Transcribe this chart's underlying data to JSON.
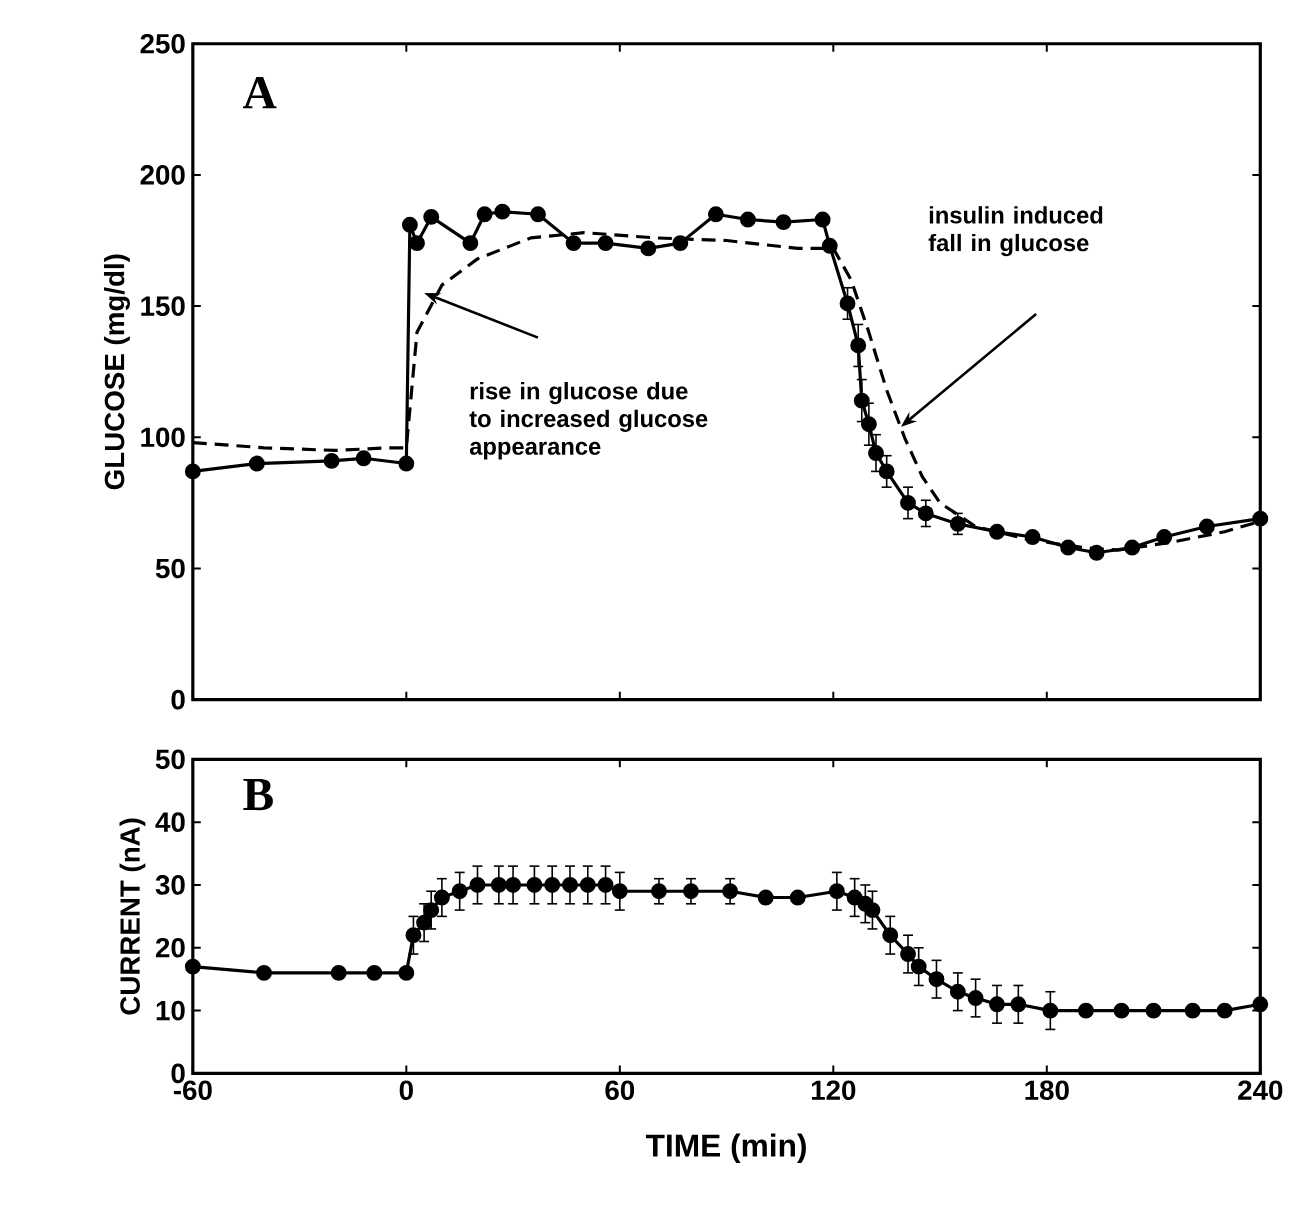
{
  "chart_data": [
    {
      "type": "line",
      "ylabel": "GLUCOSE (mg/dl)",
      "xlim": [
        -60,
        240
      ],
      "ylim": [
        0,
        250
      ],
      "xticks": [
        -60,
        0,
        60,
        120,
        180,
        240
      ],
      "yticks": [
        0,
        50,
        100,
        150,
        200,
        250
      ],
      "tick_labels": "y",
      "annotations": [
        "A",
        "rise in glucose due to increased glucose appearance",
        "insulin induced fall in glucose"
      ],
      "series": [
        {
          "color": "#000000",
          "marker": "circle",
          "line_style": "solid",
          "x": [
            -60,
            -42,
            -21,
            -12,
            0,
            1,
            3,
            7,
            18,
            22,
            27,
            37,
            47,
            56,
            68,
            77,
            87,
            96,
            106,
            117,
            119,
            124,
            127,
            128,
            130,
            132,
            135,
            141,
            146,
            155,
            166,
            176,
            186,
            194,
            204,
            213,
            225,
            240
          ],
          "values": [
            87,
            90,
            91,
            92,
            90,
            181,
            174,
            184,
            174,
            185,
            186,
            185,
            174,
            174,
            172,
            174,
            185,
            183,
            182,
            183,
            173,
            151,
            135,
            114,
            105,
            94,
            87,
            75,
            71,
            67,
            64,
            62,
            58,
            56,
            58,
            62,
            66,
            69
          ],
          "errors": [
            null,
            null,
            null,
            null,
            null,
            null,
            null,
            null,
            null,
            null,
            null,
            null,
            null,
            null,
            null,
            null,
            null,
            null,
            null,
            null,
            null,
            6,
            8,
            8,
            8,
            7,
            6,
            6,
            5,
            4,
            null,
            null,
            null,
            null,
            null,
            null,
            null,
            null
          ]
        },
        {
          "color": "#000000",
          "marker": "none",
          "line_style": "dashed",
          "x": [
            -60,
            -40,
            -20,
            -5,
            0,
            3,
            10,
            20,
            35,
            50,
            70,
            90,
            110,
            120,
            125,
            130,
            135,
            140,
            145,
            150,
            160,
            175,
            190,
            200,
            215,
            230,
            240
          ],
          "values": [
            98,
            96,
            95,
            96,
            96,
            140,
            158,
            168,
            176,
            178,
            176,
            175,
            172,
            172,
            160,
            140,
            118,
            100,
            85,
            75,
            66,
            61,
            58,
            57,
            60,
            64,
            68
          ]
        }
      ]
    },
    {
      "type": "line",
      "xlabel": "TIME (min)",
      "ylabel": "CURRENT (nA)",
      "xlim": [
        -60,
        240
      ],
      "ylim": [
        0,
        50
      ],
      "xticks": [
        -60,
        0,
        60,
        120,
        180,
        240
      ],
      "yticks": [
        0,
        10,
        20,
        30,
        40,
        50
      ],
      "annotations": [
        "B"
      ],
      "series": [
        {
          "color": "#000000",
          "marker": "circle",
          "line_style": "solid",
          "x": [
            -60,
            -40,
            -19,
            -9,
            0,
            2,
            5,
            7,
            10,
            15,
            20,
            26,
            30,
            36,
            41,
            46,
            51,
            56,
            60,
            71,
            80,
            91,
            101,
            110,
            121,
            126,
            129,
            131,
            136,
            141,
            144,
            149,
            155,
            160,
            166,
            172,
            181,
            191,
            201,
            210,
            221,
            230,
            240
          ],
          "values": [
            17,
            16,
            16,
            16,
            16,
            22,
            24,
            26,
            28,
            29,
            30,
            30,
            30,
            30,
            30,
            30,
            30,
            30,
            29,
            29,
            29,
            29,
            28,
            28,
            29,
            28,
            27,
            26,
            22,
            19,
            17,
            15,
            13,
            12,
            11,
            11,
            10,
            10,
            10,
            10,
            10,
            10,
            11
          ],
          "errors": [
            null,
            null,
            null,
            null,
            null,
            3,
            3,
            3,
            3,
            3,
            3,
            3,
            3,
            3,
            3,
            3,
            3,
            3,
            3,
            2,
            2,
            2,
            null,
            null,
            3,
            3,
            3,
            3,
            3,
            3,
            3,
            3,
            3,
            3,
            3,
            3,
            3,
            null,
            null,
            null,
            null,
            null,
            null
          ]
        }
      ]
    }
  ]
}
